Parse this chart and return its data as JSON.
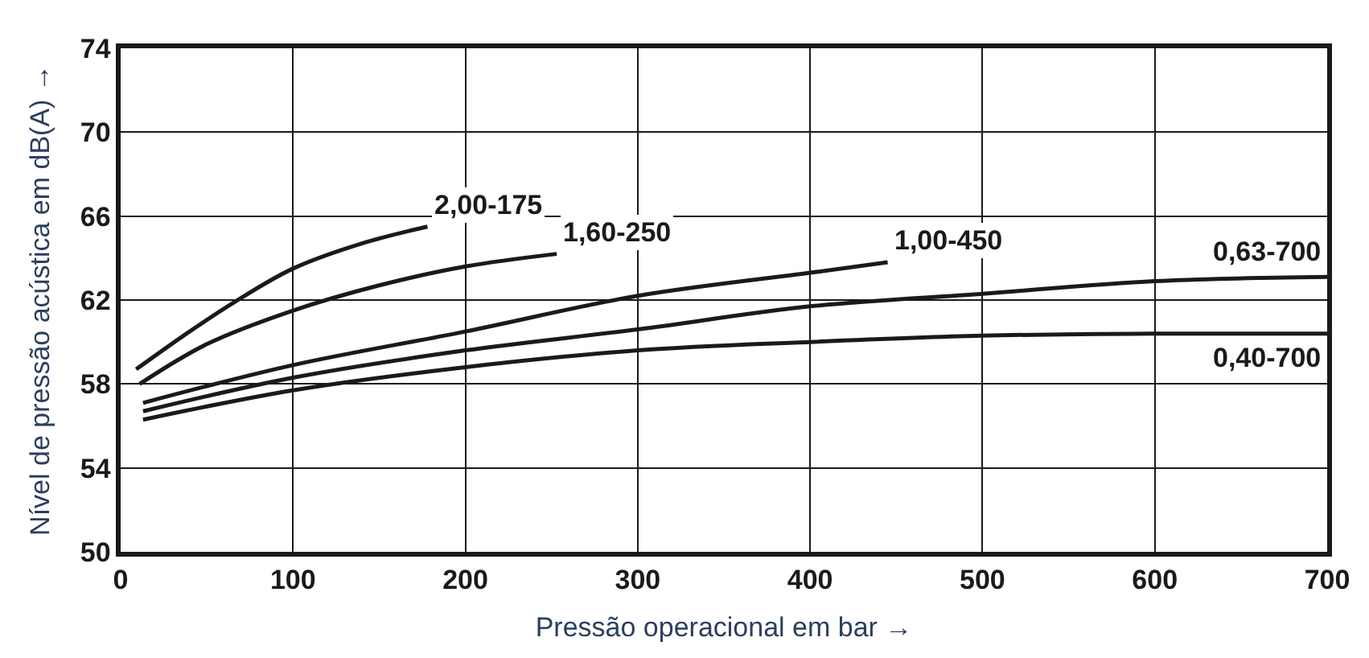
{
  "chart_data": {
    "type": "line",
    "xlabel": "Pressão operacional em bar →",
    "ylabel": "Nível de pressão acústica em dB(A) →",
    "xlim": [
      0,
      700
    ],
    "xticks": [
      0,
      100,
      200,
      300,
      400,
      500,
      600,
      700
    ],
    "ylim": [
      50,
      74
    ],
    "yticks": [
      50,
      54,
      58,
      62,
      66,
      70,
      74
    ],
    "grid": true,
    "legend": false,
    "marker": "none",
    "line_style": "solid",
    "series": [
      {
        "name": "2,00-175",
        "color": "#1a1a1a",
        "x": [
          9,
          40,
          66,
          100,
          140,
          178
        ],
        "values": [
          58.7,
          60.5,
          61.9,
          63.5,
          64.7,
          65.5
        ]
      },
      {
        "name": "1,60-250",
        "color": "#1a1a1a",
        "x": [
          11,
          50,
          100,
          150,
          200,
          253
        ],
        "values": [
          58.0,
          59.9,
          61.5,
          62.7,
          63.6,
          64.2
        ]
      },
      {
        "name": "1,00-450",
        "color": "#1a1a1a",
        "x": [
          13,
          100,
          200,
          300,
          400,
          445
        ],
        "values": [
          57.1,
          58.9,
          60.5,
          62.2,
          63.3,
          63.8
        ]
      },
      {
        "name": "0,63-700",
        "color": "#1a1a1a",
        "x": [
          13,
          100,
          200,
          300,
          400,
          500,
          600,
          700
        ],
        "values": [
          56.7,
          58.3,
          59.6,
          60.6,
          61.7,
          62.3,
          62.9,
          63.1
        ]
      },
      {
        "name": "0,40-700",
        "color": "#1a1a1a",
        "x": [
          13,
          100,
          200,
          300,
          400,
          500,
          600,
          700
        ],
        "values": [
          56.3,
          57.7,
          58.8,
          59.6,
          60.0,
          60.3,
          60.4,
          60.4
        ]
      }
    ]
  }
}
